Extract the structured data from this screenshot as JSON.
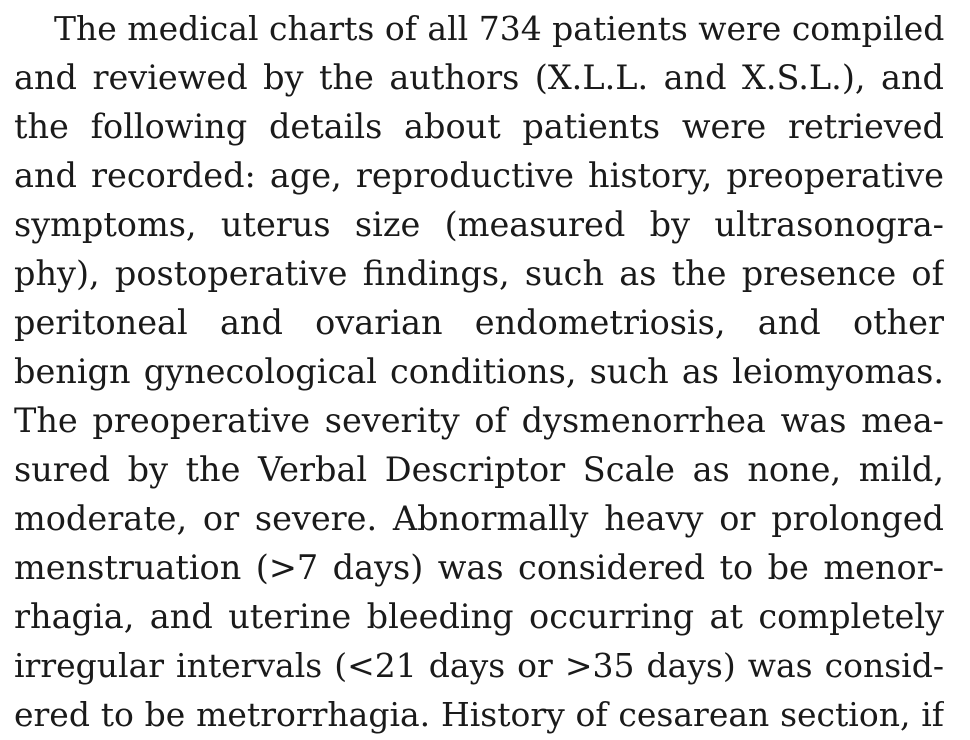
{
  "paragraph": {
    "lines": [
      "The medical charts of all 734 patients were compiled",
      "and reviewed by the authors (X.L.L. and X.S.L.), and",
      "the following details about patients were retrieved",
      "and recorded: age, reproductive history, preoperative",
      "symptoms, uterus size (measured by ultrasonogra-",
      "phy), postoperative findings, such as the presence of",
      "peritoneal and ovarian endometriosis, and other",
      "benign gynecological conditions, such as leiomyomas.",
      "The preoperative severity of dysmenorrhea was mea-",
      "sured by the Verbal Descriptor Scale as none, mild,",
      "moderate, or severe. Abnormally heavy or prolonged",
      "menstruation (>7 days) was considered to be menor-",
      "rhagia, and uterine bleeding occurring at completely",
      "irregular intervals (<21 days or >35 days) was consid-",
      "ered to be metrorrhagia. History of cesarean section, if"
    ]
  }
}
